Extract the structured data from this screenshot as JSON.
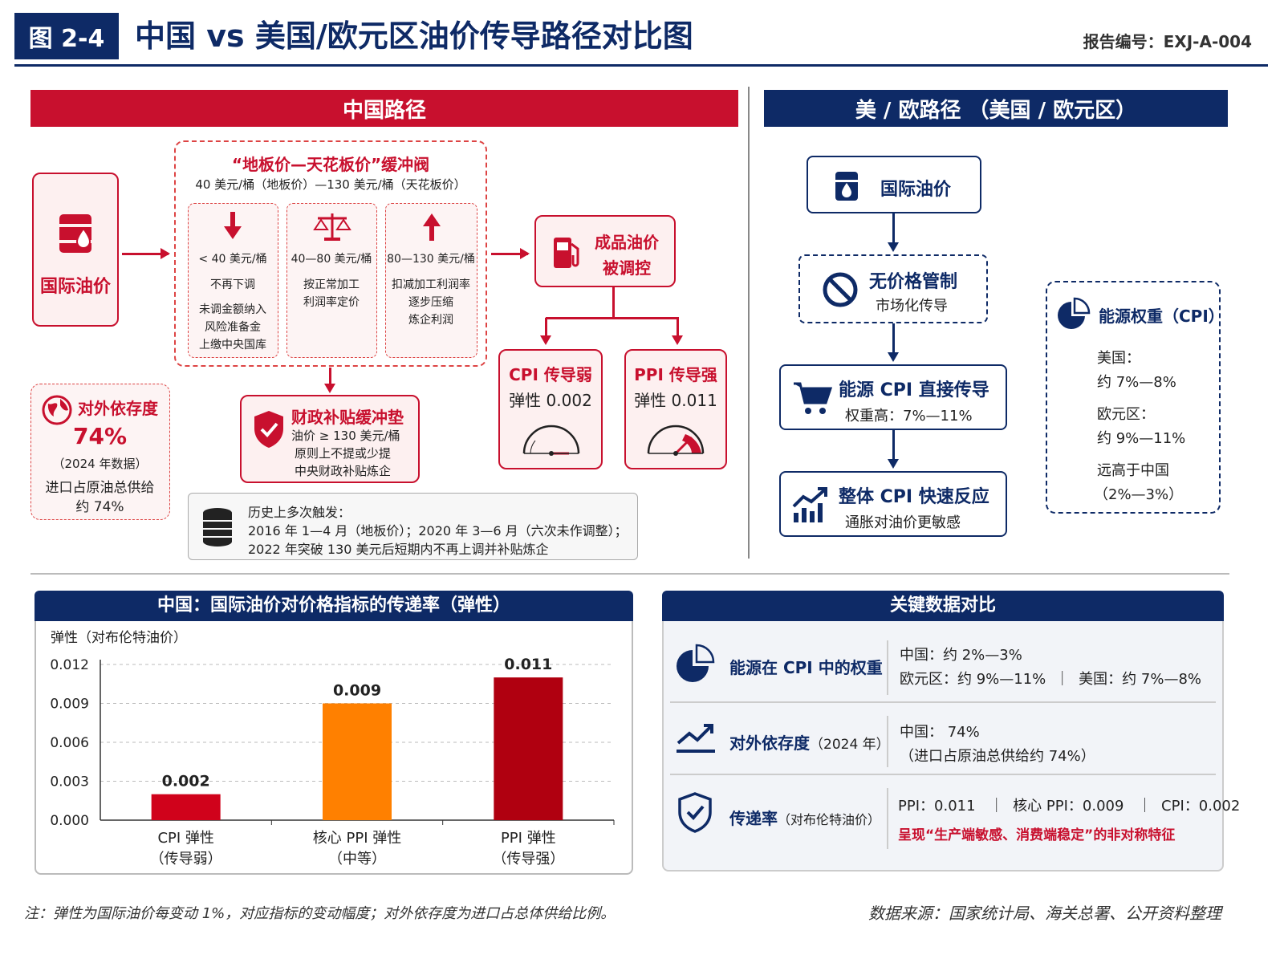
{
  "header": {
    "figure_no": "图 2-4",
    "title": "中国 vs 美国/欧元区油价传导路径对比图",
    "report_no": "报告编号：EXJ-A-004"
  },
  "china": {
    "banner": "中国路径",
    "intl_oil": "国际油价",
    "valve_title": "“地板价—天花板价”缓冲阀",
    "valve_sub": "40 美元/桶（地板价）—130 美元/桶（天花板价）",
    "band1": {
      "range": "< 40 美元/桶",
      "l1": "不再下调",
      "l2": "未调金额纳入",
      "l3": "风险准备金",
      "l4": "上缴中央国库"
    },
    "band2": {
      "range": "40—80 美元/桶",
      "l1": "按正常加工",
      "l2": "利润率定价"
    },
    "band3": {
      "range": "80—130 美元/桶",
      "l1": "扣减加工利润率",
      "l2": "逐步压缩",
      "l3": "炼企利润"
    },
    "product_l1": "成品油价",
    "product_l2": "被调控",
    "cpi_title": "CPI 传导弱",
    "cpi_val": "弹性 0.002",
    "ppi_title": "PPI 传导强",
    "ppi_val": "弹性 0.011",
    "subsidy_title": "财政补贴缓冲垫",
    "subsidy_l1": "油价 ≥ 130 美元/桶",
    "subsidy_l2": "原则上不提或少提",
    "subsidy_l3": "中央财政补贴炼企",
    "dep_title": "对外依存度",
    "dep_val": "74%",
    "dep_year": "（2024 年数据）",
    "dep_l1": "进口占原油总供给",
    "dep_l2": "约 74%",
    "hist_l1": "历史上多次触发：",
    "hist_l2": "2016 年 1—4 月（地板价）；2020 年 3—6 月（六次未作调整）；",
    "hist_l3": "2022 年突破 130 美元后短期内不再上调并补贴炼企"
  },
  "us": {
    "banner": "美 / 欧路径 （美国 / 欧元区）",
    "intl_oil": "国际油价",
    "nocontrol_title": "无价格管制",
    "nocontrol_sub": "市场化传导",
    "direct_title": "能源 CPI 直接传导",
    "direct_sub": "权重高：7%—11%",
    "fast_title": "整体 CPI 快速反应",
    "fast_sub": "通胀对油价更敏感",
    "weight_title": "能源权重（CPI）",
    "us_label": "美国：",
    "us_val": "约 7%—8%",
    "eu_label": "欧元区：",
    "eu_val": "约 9%—11%",
    "cn_label": "远高于中国",
    "cn_val": "（2%—3%）"
  },
  "chart_panel": {
    "title": "中国：国际油价对价格指标的传递率（弹性）"
  },
  "chart_data": {
    "type": "bar",
    "ylabel": "弹性（对布伦特油价）",
    "ylim": [
      0,
      0.012
    ],
    "yticks": [
      "0.000",
      "0.003",
      "0.006",
      "0.009",
      "0.012"
    ],
    "categories": [
      {
        "l1": "CPI 弹性",
        "l2": "（传导弱）"
      },
      {
        "l1": "核心 PPI 弹性",
        "l2": "（中等）"
      },
      {
        "l1": "PPI 弹性",
        "l2": "（传导强）"
      }
    ],
    "values": [
      0.002,
      0.009,
      0.011
    ],
    "labels": [
      "0.002",
      "0.009",
      "0.011"
    ],
    "colors": [
      "#d0021b",
      "#ff8000",
      "#b00010"
    ],
    "grid": true
  },
  "compare": {
    "title": "关键数据对比",
    "r1_label": "能源在 CPI 中的权重",
    "r1_l1": "中国：约 2%—3%",
    "r1_l2": "欧元区：约 9%—11%  ｜  美国：约 7%—8%",
    "r2_label": "对外依存度",
    "r2_note": "（2024 年）",
    "r2_l1": "中国： 74%",
    "r2_l2": "（进口占原油总供给约 74%）",
    "r3_label": "传递率",
    "r3_note": "（对布伦特油价）",
    "r3_l1": "PPI：0.011   ｜  核心 PPI：0.009   ｜  CPI：0.002",
    "r3_l2": "呈现“生产端敏感、消费端稳定”的非对称特征"
  },
  "footer": {
    "note": "注：弹性为国际油价每变动 1%，对应指标的变动幅度；对外依存度为进口占总体供给比例。",
    "source": "数据来源：国家统计局、海关总署、公开资料整理"
  },
  "colors": {
    "navy": "#0e2a66",
    "red": "#c8102e",
    "orange": "#ff8000"
  }
}
